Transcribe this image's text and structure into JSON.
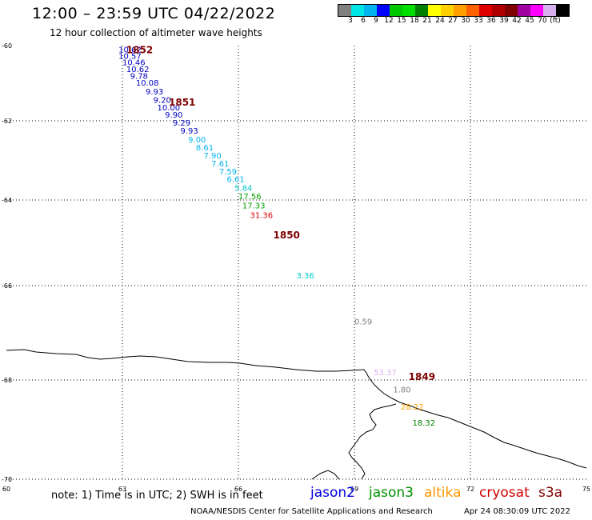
{
  "header": {
    "title": "12:00 – 23:59 UTC 04/22/2022",
    "subtitle": "12 hour collection of altimeter wave heights"
  },
  "legend": {
    "colors": [
      "#808080",
      "#00e5e5",
      "#00b4f0",
      "#0000ff",
      "#00c800",
      "#00e000",
      "#008000",
      "#ffff00",
      "#ffd000",
      "#ffa000",
      "#ff6000",
      "#e00000",
      "#b00000",
      "#800000",
      "#a000a0",
      "#ff00ff",
      "#d8b0f0",
      "#000000"
    ],
    "ticks": [
      "3",
      "6",
      "9",
      "12",
      "15",
      "18",
      "21",
      "24",
      "27",
      "30",
      "33",
      "36",
      "39",
      "42",
      "45",
      "70",
      "(ft)"
    ]
  },
  "map": {
    "lon_ticks": [
      "60",
      "63",
      "66",
      "69",
      "72",
      "75"
    ],
    "lat_ticks": [
      "-60",
      "-62",
      "-64",
      "-66",
      "-68",
      "-70"
    ],
    "orbit_labels": [
      {
        "text": "1852",
        "lon": 63.1,
        "lat": -60.2,
        "color": "#800000"
      },
      {
        "text": "1851",
        "lon": 64.2,
        "lat": -61.6,
        "color": "#800000"
      },
      {
        "text": "1850",
        "lon": 66.9,
        "lat": -64.9,
        "color": "#800000"
      },
      {
        "text": "1849",
        "lon": 70.4,
        "lat": -68.0,
        "color": "#800000"
      }
    ],
    "observations": [
      {
        "text": "10.62",
        "lon": 62.9,
        "lat": -60.18,
        "color": "#0000c0"
      },
      {
        "text": "10.57",
        "lon": 62.9,
        "lat": -60.35,
        "color": "#0000c0"
      },
      {
        "text": "10.46",
        "lon": 63.0,
        "lat": -60.52,
        "color": "#0000c0"
      },
      {
        "text": "10.62",
        "lon": 63.1,
        "lat": -60.7,
        "color": "#0000c0"
      },
      {
        "text": "9.78",
        "lon": 63.2,
        "lat": -60.88,
        "color": "#0000c0"
      },
      {
        "text": "10.08",
        "lon": 63.35,
        "lat": -61.06,
        "color": "#0000c0"
      },
      {
        "text": "9.93",
        "lon": 63.6,
        "lat": -61.3,
        "color": "#0000c0"
      },
      {
        "text": "9.20",
        "lon": 63.8,
        "lat": -61.52,
        "color": "#0000c0"
      },
      {
        "text": "10.00",
        "lon": 63.9,
        "lat": -61.72,
        "color": "#0000c0"
      },
      {
        "text": "9.90",
        "lon": 64.1,
        "lat": -61.92,
        "color": "#0000c0"
      },
      {
        "text": "9.29",
        "lon": 64.3,
        "lat": -62.12,
        "color": "#0000c0"
      },
      {
        "text": "9.93",
        "lon": 64.5,
        "lat": -62.32,
        "color": "#0000c0"
      },
      {
        "text": "9.00",
        "lon": 64.7,
        "lat": -62.55,
        "color": "#00b4f0"
      },
      {
        "text": "8.61",
        "lon": 64.9,
        "lat": -62.75,
        "color": "#00b4f0"
      },
      {
        "text": "7.90",
        "lon": 65.1,
        "lat": -62.95,
        "color": "#00b4f0"
      },
      {
        "text": "7.61",
        "lon": 65.3,
        "lat": -63.15,
        "color": "#00b4f0"
      },
      {
        "text": "7.59",
        "lon": 65.5,
        "lat": -63.35,
        "color": "#00b4f0"
      },
      {
        "text": "6.61",
        "lon": 65.7,
        "lat": -63.55,
        "color": "#00b4f0"
      },
      {
        "text": "5.84",
        "lon": 65.9,
        "lat": -63.77,
        "color": "#00c8c8"
      },
      {
        "text": "17.56",
        "lon": 66.0,
        "lat": -63.98,
        "color": "#00a000"
      },
      {
        "text": "17.33",
        "lon": 66.1,
        "lat": -64.2,
        "color": "#00a000"
      },
      {
        "text": "31.36",
        "lon": 66.3,
        "lat": -64.42,
        "color": "#e00000"
      },
      {
        "text": "3.36",
        "lon": 67.5,
        "lat": -65.83,
        "color": "#00c8c8"
      },
      {
        "text": "0.59",
        "lon": 69.0,
        "lat": -66.82,
        "color": "#808080"
      },
      {
        "text": "53.37",
        "lon": 69.5,
        "lat": -67.9,
        "color": "#d8b0f0"
      },
      {
        "text": "1.80",
        "lon": 70.0,
        "lat": -68.25,
        "color": "#808080"
      },
      {
        "text": "28.22",
        "lon": 70.2,
        "lat": -68.6,
        "color": "#ffa000"
      },
      {
        "text": "18.32",
        "lon": 70.5,
        "lat": -68.92,
        "color": "#008000"
      }
    ]
  },
  "footer": {
    "note": "note: 1) Time is in UTC; 2) SWH is in feet",
    "satellites": [
      {
        "name": "jason2",
        "color": "#0000e0"
      },
      {
        "name": "jason3",
        "color": "#009000"
      },
      {
        "name": "altika",
        "color": "#ff9900"
      },
      {
        "name": "cryosat",
        "color": "#d00000"
      },
      {
        "name": "s3a",
        "color": "#800000"
      }
    ],
    "credit": "NOAA/NESDIS Center for Satellite Applications and Research",
    "generated": "Apr 24 08:30:09 UTC 2022"
  }
}
